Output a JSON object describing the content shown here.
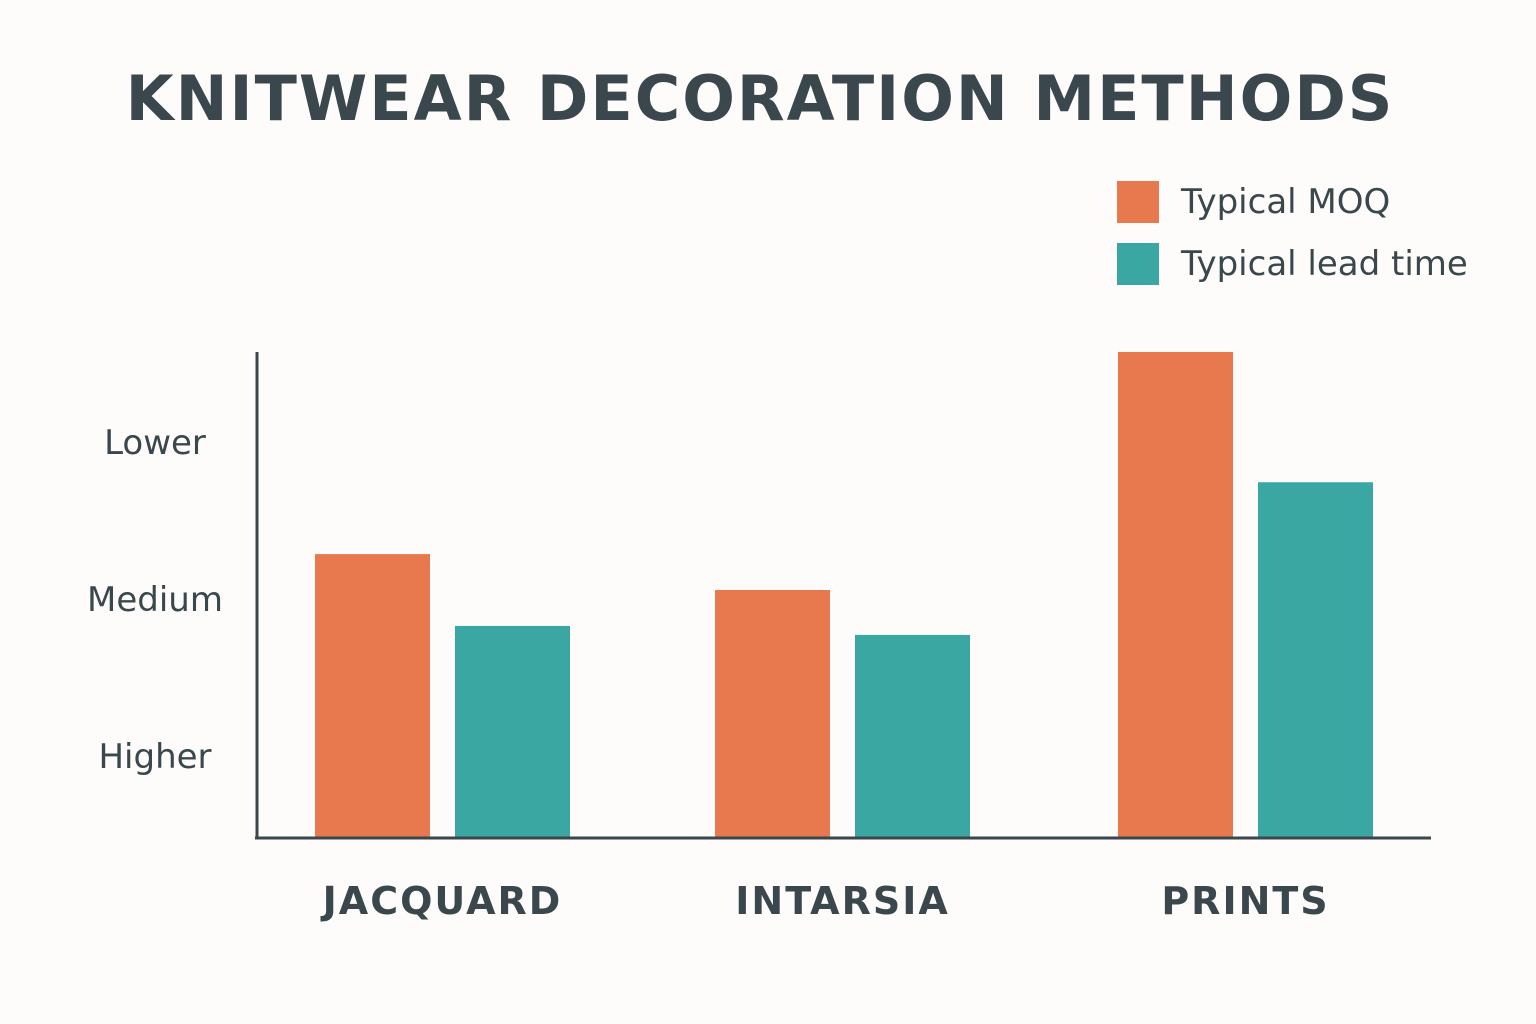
{
  "chart_data": {
    "type": "bar",
    "title": "KNITWEAR DECORATION METHODS",
    "xlabel": "",
    "ylabel": "",
    "categories": [
      "JACQUARD",
      "INTARSIA",
      "PRINTS"
    ],
    "series": [
      {
        "name": "Typical MOQ",
        "color": "#e8794f",
        "values": [
          0.63,
          0.55,
          1.08
        ]
      },
      {
        "name": "Typical lead time",
        "color": "#3ba7a2",
        "values": [
          0.47,
          0.45,
          0.79
        ]
      }
    ],
    "y_tick_labels": [
      "Higher",
      "Medium",
      "Lower"
    ],
    "y_tick_values": [
      0.18,
      0.53,
      0.88
    ],
    "ylim": [
      0,
      1.08
    ],
    "grid": false,
    "legend_position": "top-right"
  }
}
